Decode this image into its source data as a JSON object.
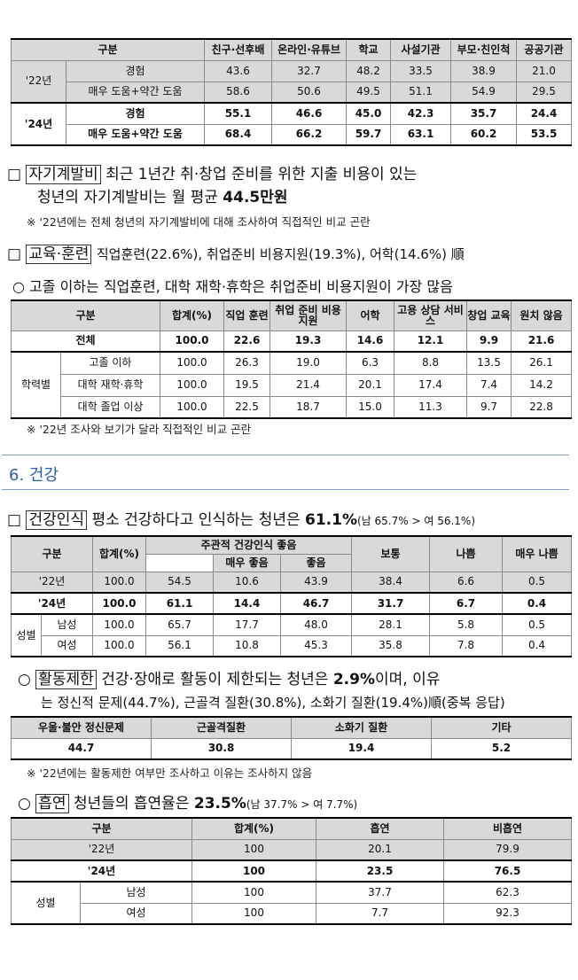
{
  "table1": {
    "headers": [
      "구분",
      "친구·선후배",
      "온라인·유튜브",
      "학교",
      "사설기관",
      "부모·친인척",
      "공공기관"
    ],
    "rows": [
      {
        "year": "'22년",
        "label": "경험",
        "values": [
          "43.6",
          "32.7",
          "48.2",
          "33.5",
          "38.9",
          "21.0"
        ]
      },
      {
        "label": "매우 도움+약간 도움",
        "values": [
          "58.6",
          "50.6",
          "49.5",
          "51.1",
          "54.9",
          "29.5"
        ]
      },
      {
        "year": "'24년",
        "label": "경험",
        "values": [
          "55.1",
          "46.6",
          "45.0",
          "42.3",
          "35.7",
          "24.4"
        ]
      },
      {
        "label": "매우 도움+약간 도움",
        "values": [
          "68.4",
          "66.2",
          "59.7",
          "63.1",
          "60.2",
          "53.5"
        ]
      }
    ]
  },
  "selfdev": {
    "bullet": "□",
    "tag": "자기계발비",
    "line1": "최근 1년간 취·창업 준비를 위한 지출 비용이 있는",
    "line2a": "청년의 자기계발비는 월 평균 ",
    "line2b": "44.5만원",
    "note": "※ '22년에는 전체 청년의 자기계발비에 대해 조사하여 직접적인 비교 곤란"
  },
  "training": {
    "bullet": "□",
    "tag": "교육·훈련",
    "text": "직업훈련(22.6%), 취업준비 비용지원(19.3%), 어학(14.6%) 順",
    "sub": "○ 고졸 이하는 직업훈련, 대학 재학·휴학은 취업준비 비용지원이 가장 많음",
    "table": {
      "headers": [
        "구분",
        "합계(%)",
        "직업 훈련",
        "취업 준비 비용 지원",
        "어학",
        "고용 상담 서비스",
        "창업 교육",
        "원치 않음"
      ],
      "total": {
        "label": "전체",
        "values": [
          "100.0",
          "22.6",
          "19.3",
          "14.6",
          "12.1",
          "9.9",
          "21.6"
        ]
      },
      "group": "학력별",
      "rows": [
        {
          "label": "고졸 이하",
          "values": [
            "100.0",
            "26.3",
            "19.0",
            "6.3",
            "8.8",
            "13.5",
            "26.1"
          ]
        },
        {
          "label": "대학 재학·휴학",
          "values": [
            "100.0",
            "19.5",
            "21.4",
            "20.1",
            "17.4",
            "7.4",
            "14.2"
          ]
        },
        {
          "label": "대학 졸업 이상",
          "values": [
            "100.0",
            "22.5",
            "18.7",
            "15.0",
            "11.3",
            "9.7",
            "22.8"
          ]
        }
      ]
    },
    "note": "※ '22년 조사와 보기가 달라 직접적인 비교 곤란"
  },
  "section": {
    "title": "6. 건강"
  },
  "health": {
    "bullet": "□",
    "tag": "건강인식",
    "text": "평소 건강하다고 인식하는 청년은 ",
    "value": "61.1%",
    "extra": "(남 65.7% > 여 56.1%)",
    "table": {
      "h_gubun": "구분",
      "h_total": "합계(%)",
      "h_group": "주관적 건강인식 좋음",
      "h_verygood": "매우 좋음",
      "h_good": "좋음",
      "h_normal": "보통",
      "h_bad": "나쁨",
      "h_verybad": "매우 나쁨",
      "rows": [
        {
          "label": "'22년",
          "values": [
            "100.0",
            "54.5",
            "10.6",
            "43.9",
            "38.4",
            "6.6",
            "0.5"
          ]
        },
        {
          "label": "'24년",
          "values": [
            "100.0",
            "61.1",
            "14.4",
            "46.7",
            "31.7",
            "6.7",
            "0.4"
          ]
        }
      ],
      "group": "성별",
      "gender_rows": [
        {
          "label": "남성",
          "values": [
            "100.0",
            "65.7",
            "17.7",
            "48.0",
            "28.1",
            "5.8",
            "0.5"
          ]
        },
        {
          "label": "여성",
          "values": [
            "100.0",
            "56.1",
            "10.8",
            "45.3",
            "35.8",
            "7.8",
            "0.4"
          ]
        }
      ]
    }
  },
  "activity": {
    "bullet": "○",
    "tag": "활동제한",
    "text": "건강·장애로 활동이 제한되는 청년은 ",
    "value": "2.9%",
    "text2": "이며, 이유",
    "line2": "는 정신적 문제(44.7%), 근골격 질환(30.8%), 소화기 질환(19.4%)順(중복 응답)",
    "table": {
      "headers": [
        "우울·불안 정신문제",
        "근골격질환",
        "소화기 질환",
        "기타"
      ],
      "values": [
        "44.7",
        "30.8",
        "19.4",
        "5.2"
      ]
    },
    "note": "※ '22년에는 활동제한 여부만 조사하고 이유는 조사하지 않음"
  },
  "smoking": {
    "bullet": "○",
    "tag": "흡연",
    "text": "청년들의 흡연율은 ",
    "value": "23.5%",
    "extra": "(남 37.7% > 여 7.7%)",
    "table": {
      "headers": [
        "구분",
        "합계(%)",
        "흡연",
        "비흡연"
      ],
      "rows": [
        {
          "label": "'22년",
          "values": [
            "100",
            "20.1",
            "79.9"
          ]
        },
        {
          "label": "'24년",
          "values": [
            "100",
            "23.5",
            "76.5"
          ]
        }
      ],
      "group": "성별",
      "gender_rows": [
        {
          "label": "남성",
          "values": [
            "100",
            "37.7",
            "62.3"
          ]
        },
        {
          "label": "여성",
          "values": [
            "100",
            "7.7",
            "92.3"
          ]
        }
      ]
    }
  }
}
